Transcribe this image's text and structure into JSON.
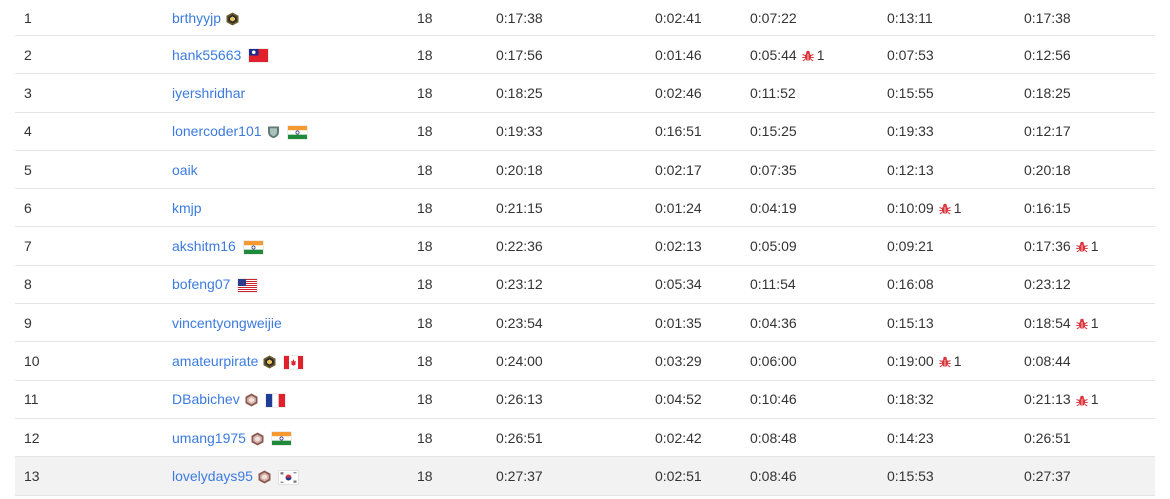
{
  "colors": {
    "link": "#3b7be0",
    "bug": "#d9363e",
    "row_alt_bg": "#f7f7f7",
    "divider": "#e5e5e5"
  },
  "rows": [
    {
      "rank": "1",
      "user": "brthyyjp",
      "badge": "guardian",
      "flag": "",
      "score": "18",
      "total": "0:17:38",
      "q1": "0:02:41",
      "q1_wrong": "",
      "q2": "0:07:22",
      "q2_wrong": "",
      "q3": "0:13:11",
      "q3_wrong": "",
      "q4": "0:17:38",
      "q4_wrong": ""
    },
    {
      "rank": "2",
      "user": "hank55663",
      "badge": "",
      "flag": "taiwan",
      "score": "18",
      "total": "0:17:56",
      "q1": "0:01:46",
      "q1_wrong": "",
      "q2": "0:05:44",
      "q2_wrong": "1",
      "q3": "0:07:53",
      "q3_wrong": "",
      "q4": "0:12:56",
      "q4_wrong": ""
    },
    {
      "rank": "3",
      "user": "iyershridhar",
      "badge": "",
      "flag": "",
      "score": "18",
      "total": "0:18:25",
      "q1": "0:02:46",
      "q1_wrong": "",
      "q2": "0:11:52",
      "q2_wrong": "",
      "q3": "0:15:55",
      "q3_wrong": "",
      "q4": "0:18:25",
      "q4_wrong": ""
    },
    {
      "rank": "4",
      "user": "lonercoder101",
      "badge": "knight",
      "flag": "india",
      "score": "18",
      "total": "0:19:33",
      "q1": "0:16:51",
      "q1_wrong": "",
      "q2": "0:15:25",
      "q2_wrong": "",
      "q3": "0:19:33",
      "q3_wrong": "",
      "q4": "0:12:17",
      "q4_wrong": ""
    },
    {
      "rank": "5",
      "user": "oaik",
      "badge": "",
      "flag": "",
      "score": "18",
      "total": "0:20:18",
      "q1": "0:02:17",
      "q1_wrong": "",
      "q2": "0:07:35",
      "q2_wrong": "",
      "q3": "0:12:13",
      "q3_wrong": "",
      "q4": "0:20:18",
      "q4_wrong": ""
    },
    {
      "rank": "6",
      "user": "kmjp",
      "badge": "",
      "flag": "",
      "score": "18",
      "total": "0:21:15",
      "q1": "0:01:24",
      "q1_wrong": "",
      "q2": "0:04:19",
      "q2_wrong": "",
      "q3": "0:10:09",
      "q3_wrong": "1",
      "q4": "0:16:15",
      "q4_wrong": ""
    },
    {
      "rank": "7",
      "user": "akshitm16",
      "badge": "",
      "flag": "india",
      "score": "18",
      "total": "0:22:36",
      "q1": "0:02:13",
      "q1_wrong": "",
      "q2": "0:05:09",
      "q2_wrong": "",
      "q3": "0:09:21",
      "q3_wrong": "",
      "q4": "0:17:36",
      "q4_wrong": "1"
    },
    {
      "rank": "8",
      "user": "bofeng07",
      "badge": "",
      "flag": "usa",
      "score": "18",
      "total": "0:23:12",
      "q1": "0:05:34",
      "q1_wrong": "",
      "q2": "0:11:54",
      "q2_wrong": "",
      "q3": "0:16:08",
      "q3_wrong": "",
      "q4": "0:23:12",
      "q4_wrong": ""
    },
    {
      "rank": "9",
      "user": "vincentyongweijie",
      "badge": "",
      "flag": "",
      "score": "18",
      "total": "0:23:54",
      "q1": "0:01:35",
      "q1_wrong": "",
      "q2": "0:04:36",
      "q2_wrong": "",
      "q3": "0:15:13",
      "q3_wrong": "",
      "q4": "0:18:54",
      "q4_wrong": "1"
    },
    {
      "rank": "10",
      "user": "amateurpirate",
      "badge": "guardian",
      "flag": "canada",
      "score": "18",
      "total": "0:24:00",
      "q1": "0:03:29",
      "q1_wrong": "",
      "q2": "0:06:00",
      "q2_wrong": "",
      "q3": "0:19:00",
      "q3_wrong": "1",
      "q4": "0:08:44",
      "q4_wrong": ""
    },
    {
      "rank": "11",
      "user": "DBabichev",
      "badge": "knight-red",
      "flag": "france",
      "score": "18",
      "total": "0:26:13",
      "q1": "0:04:52",
      "q1_wrong": "",
      "q2": "0:10:46",
      "q2_wrong": "",
      "q3": "0:18:32",
      "q3_wrong": "",
      "q4": "0:21:13",
      "q4_wrong": "1"
    },
    {
      "rank": "12",
      "user": "umang1975",
      "badge": "knight-red",
      "flag": "india",
      "score": "18",
      "total": "0:26:51",
      "q1": "0:02:42",
      "q1_wrong": "",
      "q2": "0:08:48",
      "q2_wrong": "",
      "q3": "0:14:23",
      "q3_wrong": "",
      "q4": "0:26:51",
      "q4_wrong": ""
    },
    {
      "rank": "13",
      "user": "lovelydays95",
      "badge": "knight-red",
      "flag": "korea",
      "score": "18",
      "total": "0:27:37",
      "q1": "0:02:51",
      "q1_wrong": "",
      "q2": "0:08:46",
      "q2_wrong": "",
      "q3": "0:15:53",
      "q3_wrong": "",
      "q4": "0:27:37",
      "q4_wrong": ""
    }
  ]
}
